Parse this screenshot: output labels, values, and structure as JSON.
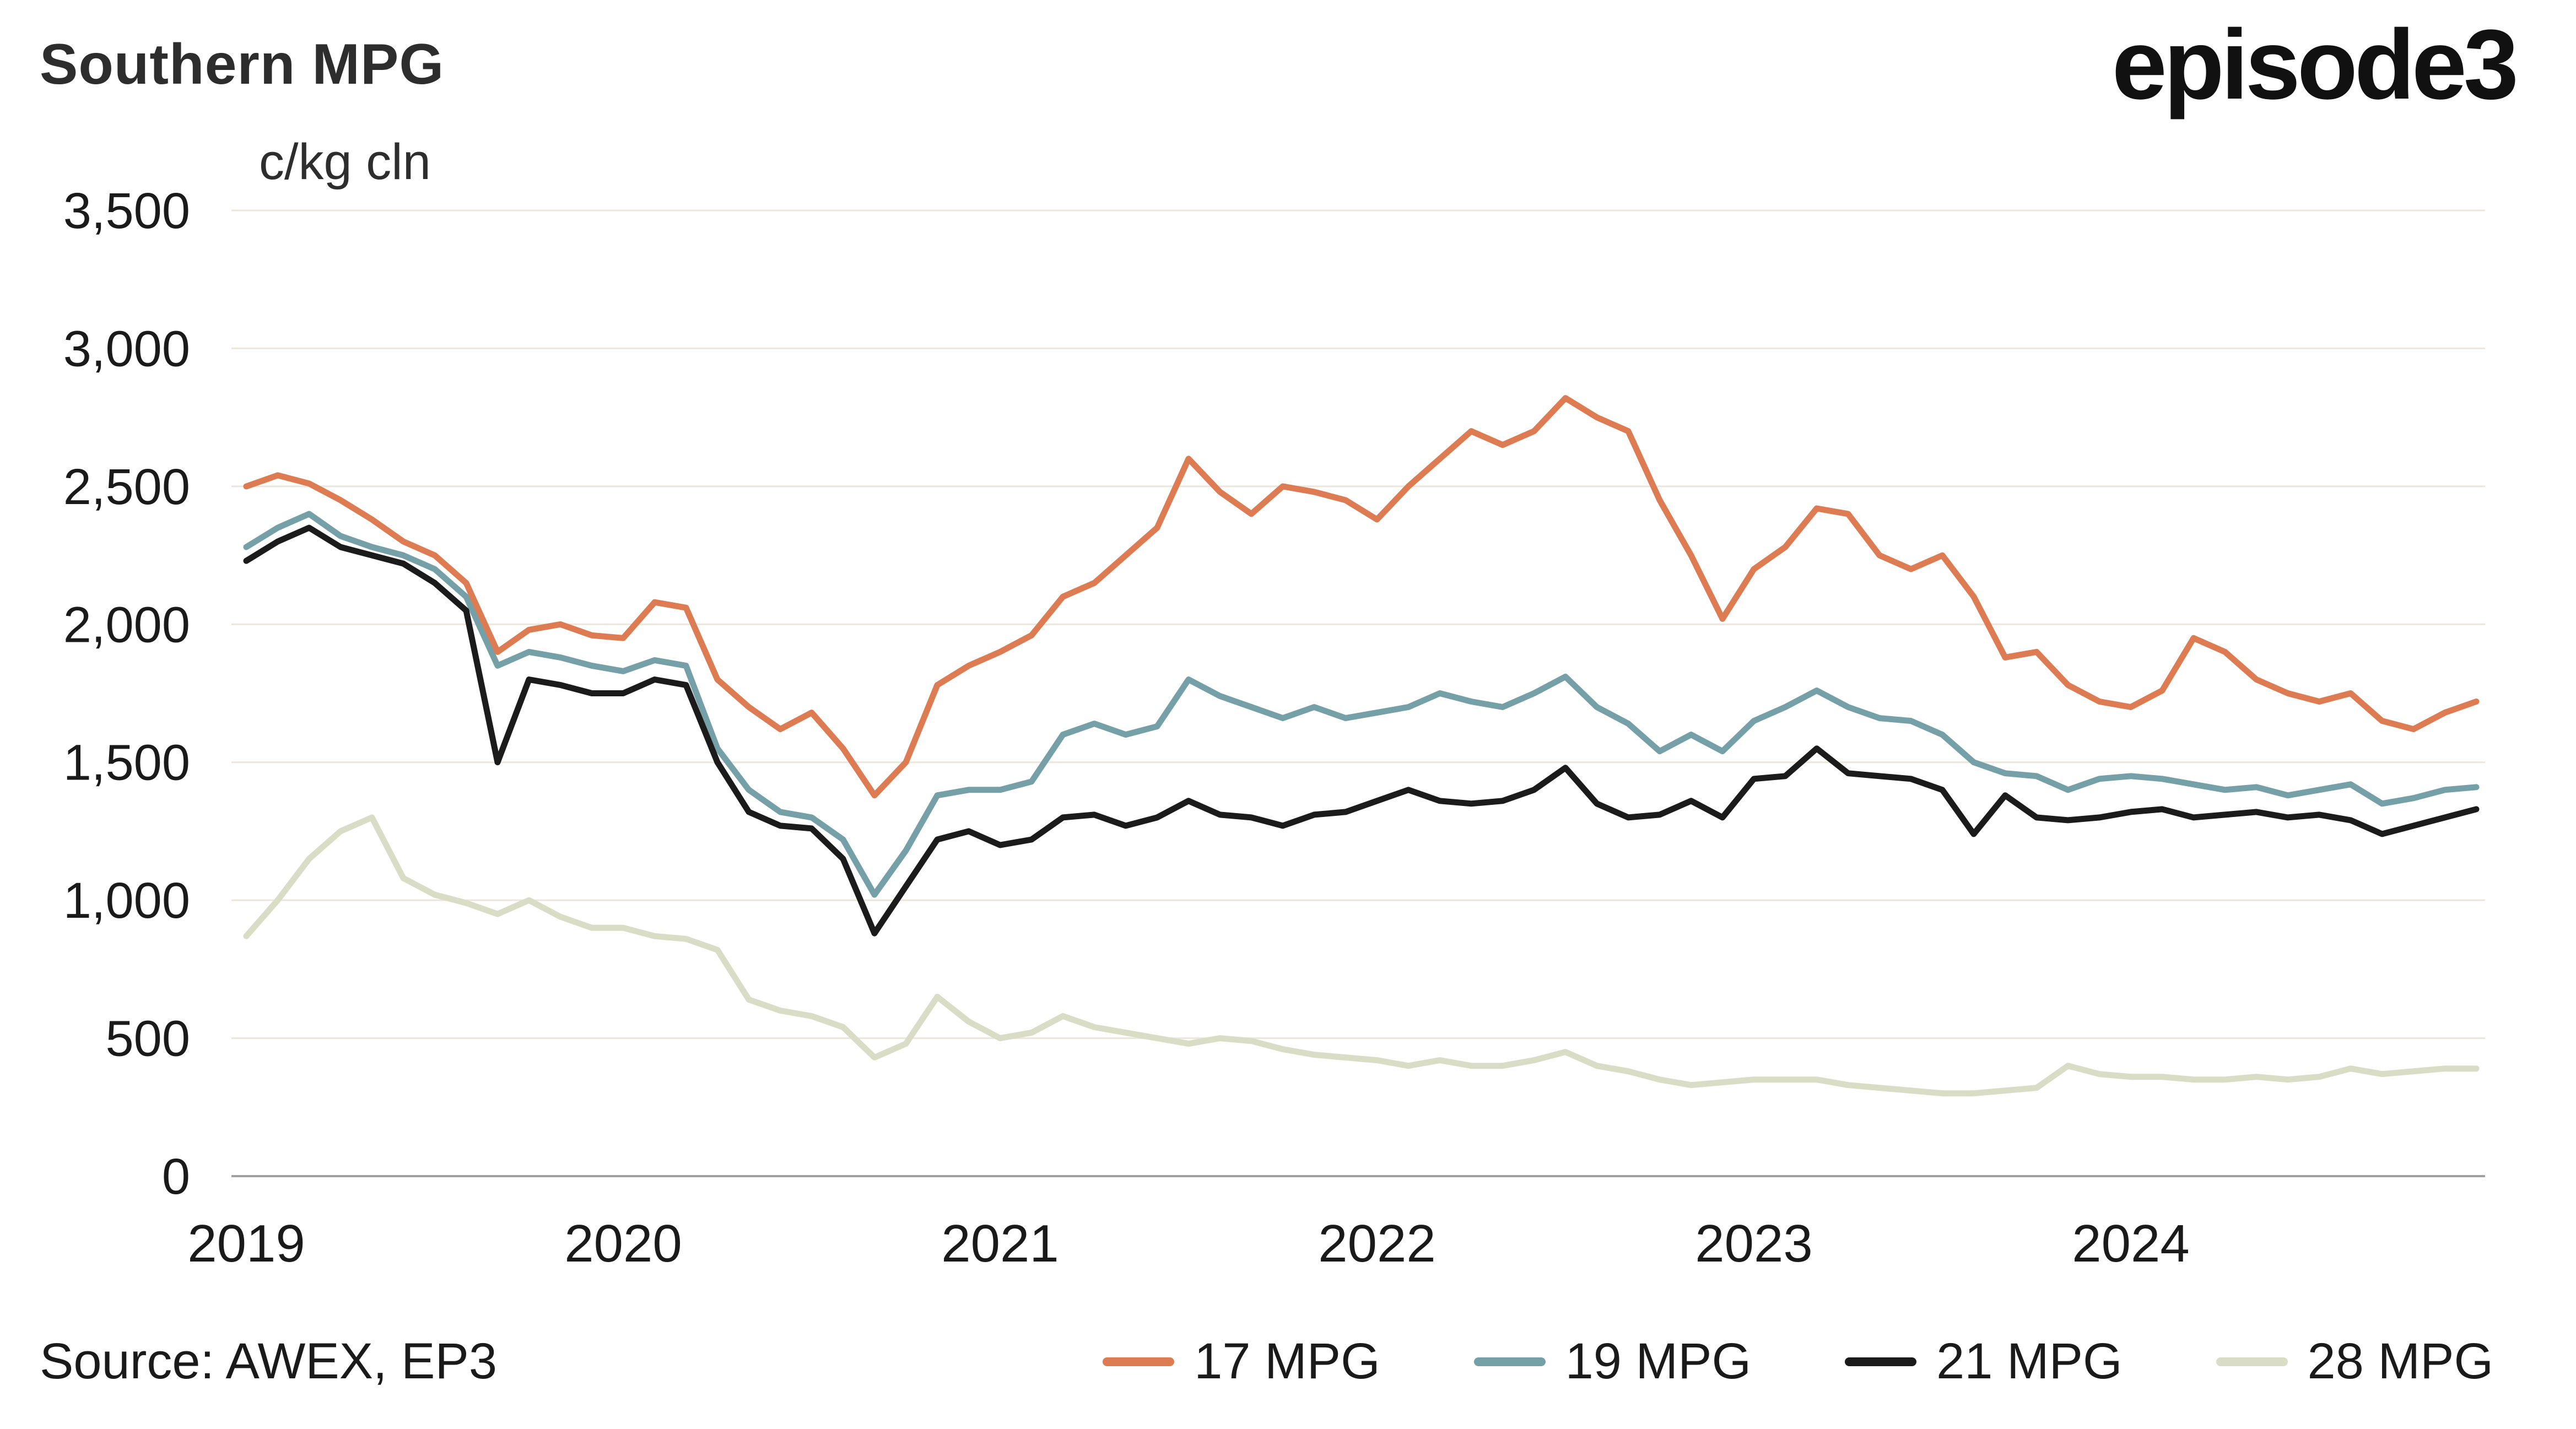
{
  "header": {
    "title": "Southern MPG",
    "logo_text": "episode3"
  },
  "source_text": "Source: AWEX, EP3",
  "colors": {
    "background": "#ffffff",
    "gridline": "#ece7dd",
    "zero_axis": "#a0a0a0",
    "text": "#1a1a1a",
    "series_17mpg": "#dd7c52",
    "series_19mpg": "#76a0a8",
    "series_21mpg": "#1b1b1b",
    "series_28mpg": "#d9ddc6"
  },
  "chart_data": {
    "type": "line",
    "title": "Southern MPG",
    "xlabel": "",
    "ylabel": "c/kg cln",
    "ylim": [
      0,
      3500
    ],
    "ytick_interval": 500,
    "ytick_labels": [
      "0",
      "500",
      "1,000",
      "1,500",
      "2,000",
      "2,500",
      "3,000",
      "3,500"
    ],
    "xtick_labels": [
      "2019",
      "2020",
      "2021",
      "2022",
      "2023",
      "2024"
    ],
    "x_start_year": 2019,
    "points_per_year": 12,
    "grid": true,
    "legend_position": "bottom",
    "series": [
      {
        "name": "17 MPG",
        "color": "#dd7c52",
        "values": [
          2500,
          2540,
          2510,
          2450,
          2380,
          2300,
          2250,
          2150,
          1900,
          1980,
          2000,
          1960,
          1950,
          2080,
          2060,
          1800,
          1700,
          1620,
          1680,
          1550,
          1380,
          1500,
          1780,
          1850,
          1900,
          1960,
          2100,
          2150,
          2250,
          2350,
          2600,
          2480,
          2400,
          2500,
          2480,
          2450,
          2380,
          2500,
          2600,
          2700,
          2650,
          2700,
          2820,
          2750,
          2700,
          2450,
          2250,
          2020,
          2200,
          2280,
          2420,
          2400,
          2250,
          2200,
          2250,
          2100,
          1880,
          1900,
          1780,
          1720,
          1700,
          1760,
          1950,
          1900,
          1800,
          1750,
          1720,
          1750,
          1650,
          1620,
          1680,
          1720
        ]
      },
      {
        "name": "19 MPG",
        "color": "#76a0a8",
        "values": [
          2280,
          2350,
          2400,
          2320,
          2280,
          2250,
          2200,
          2100,
          1850,
          1900,
          1880,
          1850,
          1830,
          1870,
          1850,
          1550,
          1400,
          1320,
          1300,
          1220,
          1020,
          1180,
          1380,
          1400,
          1400,
          1430,
          1600,
          1640,
          1600,
          1630,
          1800,
          1740,
          1700,
          1660,
          1700,
          1660,
          1680,
          1700,
          1750,
          1720,
          1700,
          1750,
          1810,
          1700,
          1640,
          1540,
          1600,
          1540,
          1650,
          1700,
          1760,
          1700,
          1660,
          1650,
          1600,
          1500,
          1460,
          1450,
          1400,
          1440,
          1450,
          1440,
          1420,
          1400,
          1410,
          1380,
          1400,
          1420,
          1350,
          1370,
          1400,
          1410
        ]
      },
      {
        "name": "21 MPG",
        "color": "#1b1b1b",
        "values": [
          2230,
          2300,
          2350,
          2280,
          2250,
          2220,
          2150,
          2050,
          1500,
          1800,
          1780,
          1750,
          1750,
          1800,
          1780,
          1500,
          1320,
          1270,
          1260,
          1150,
          880,
          1050,
          1220,
          1250,
          1200,
          1220,
          1300,
          1310,
          1270,
          1300,
          1360,
          1310,
          1300,
          1270,
          1310,
          1320,
          1360,
          1400,
          1360,
          1350,
          1360,
          1400,
          1480,
          1350,
          1300,
          1310,
          1360,
          1300,
          1440,
          1450,
          1550,
          1460,
          1450,
          1440,
          1400,
          1240,
          1380,
          1300,
          1290,
          1300,
          1320,
          1330,
          1300,
          1310,
          1320,
          1300,
          1310,
          1290,
          1240,
          1270,
          1300,
          1330
        ]
      },
      {
        "name": "28 MPG",
        "color": "#d9ddc6",
        "values": [
          870,
          1000,
          1150,
          1250,
          1300,
          1080,
          1020,
          990,
          950,
          1000,
          940,
          900,
          900,
          870,
          860,
          820,
          640,
          600,
          580,
          540,
          430,
          480,
          650,
          560,
          500,
          520,
          580,
          540,
          520,
          500,
          480,
          500,
          490,
          460,
          440,
          430,
          420,
          400,
          420,
          400,
          400,
          420,
          450,
          400,
          380,
          350,
          330,
          340,
          350,
          350,
          350,
          330,
          320,
          310,
          300,
          300,
          310,
          320,
          400,
          370,
          360,
          360,
          350,
          350,
          360,
          350,
          360,
          390,
          370,
          380,
          390,
          390
        ]
      }
    ]
  }
}
